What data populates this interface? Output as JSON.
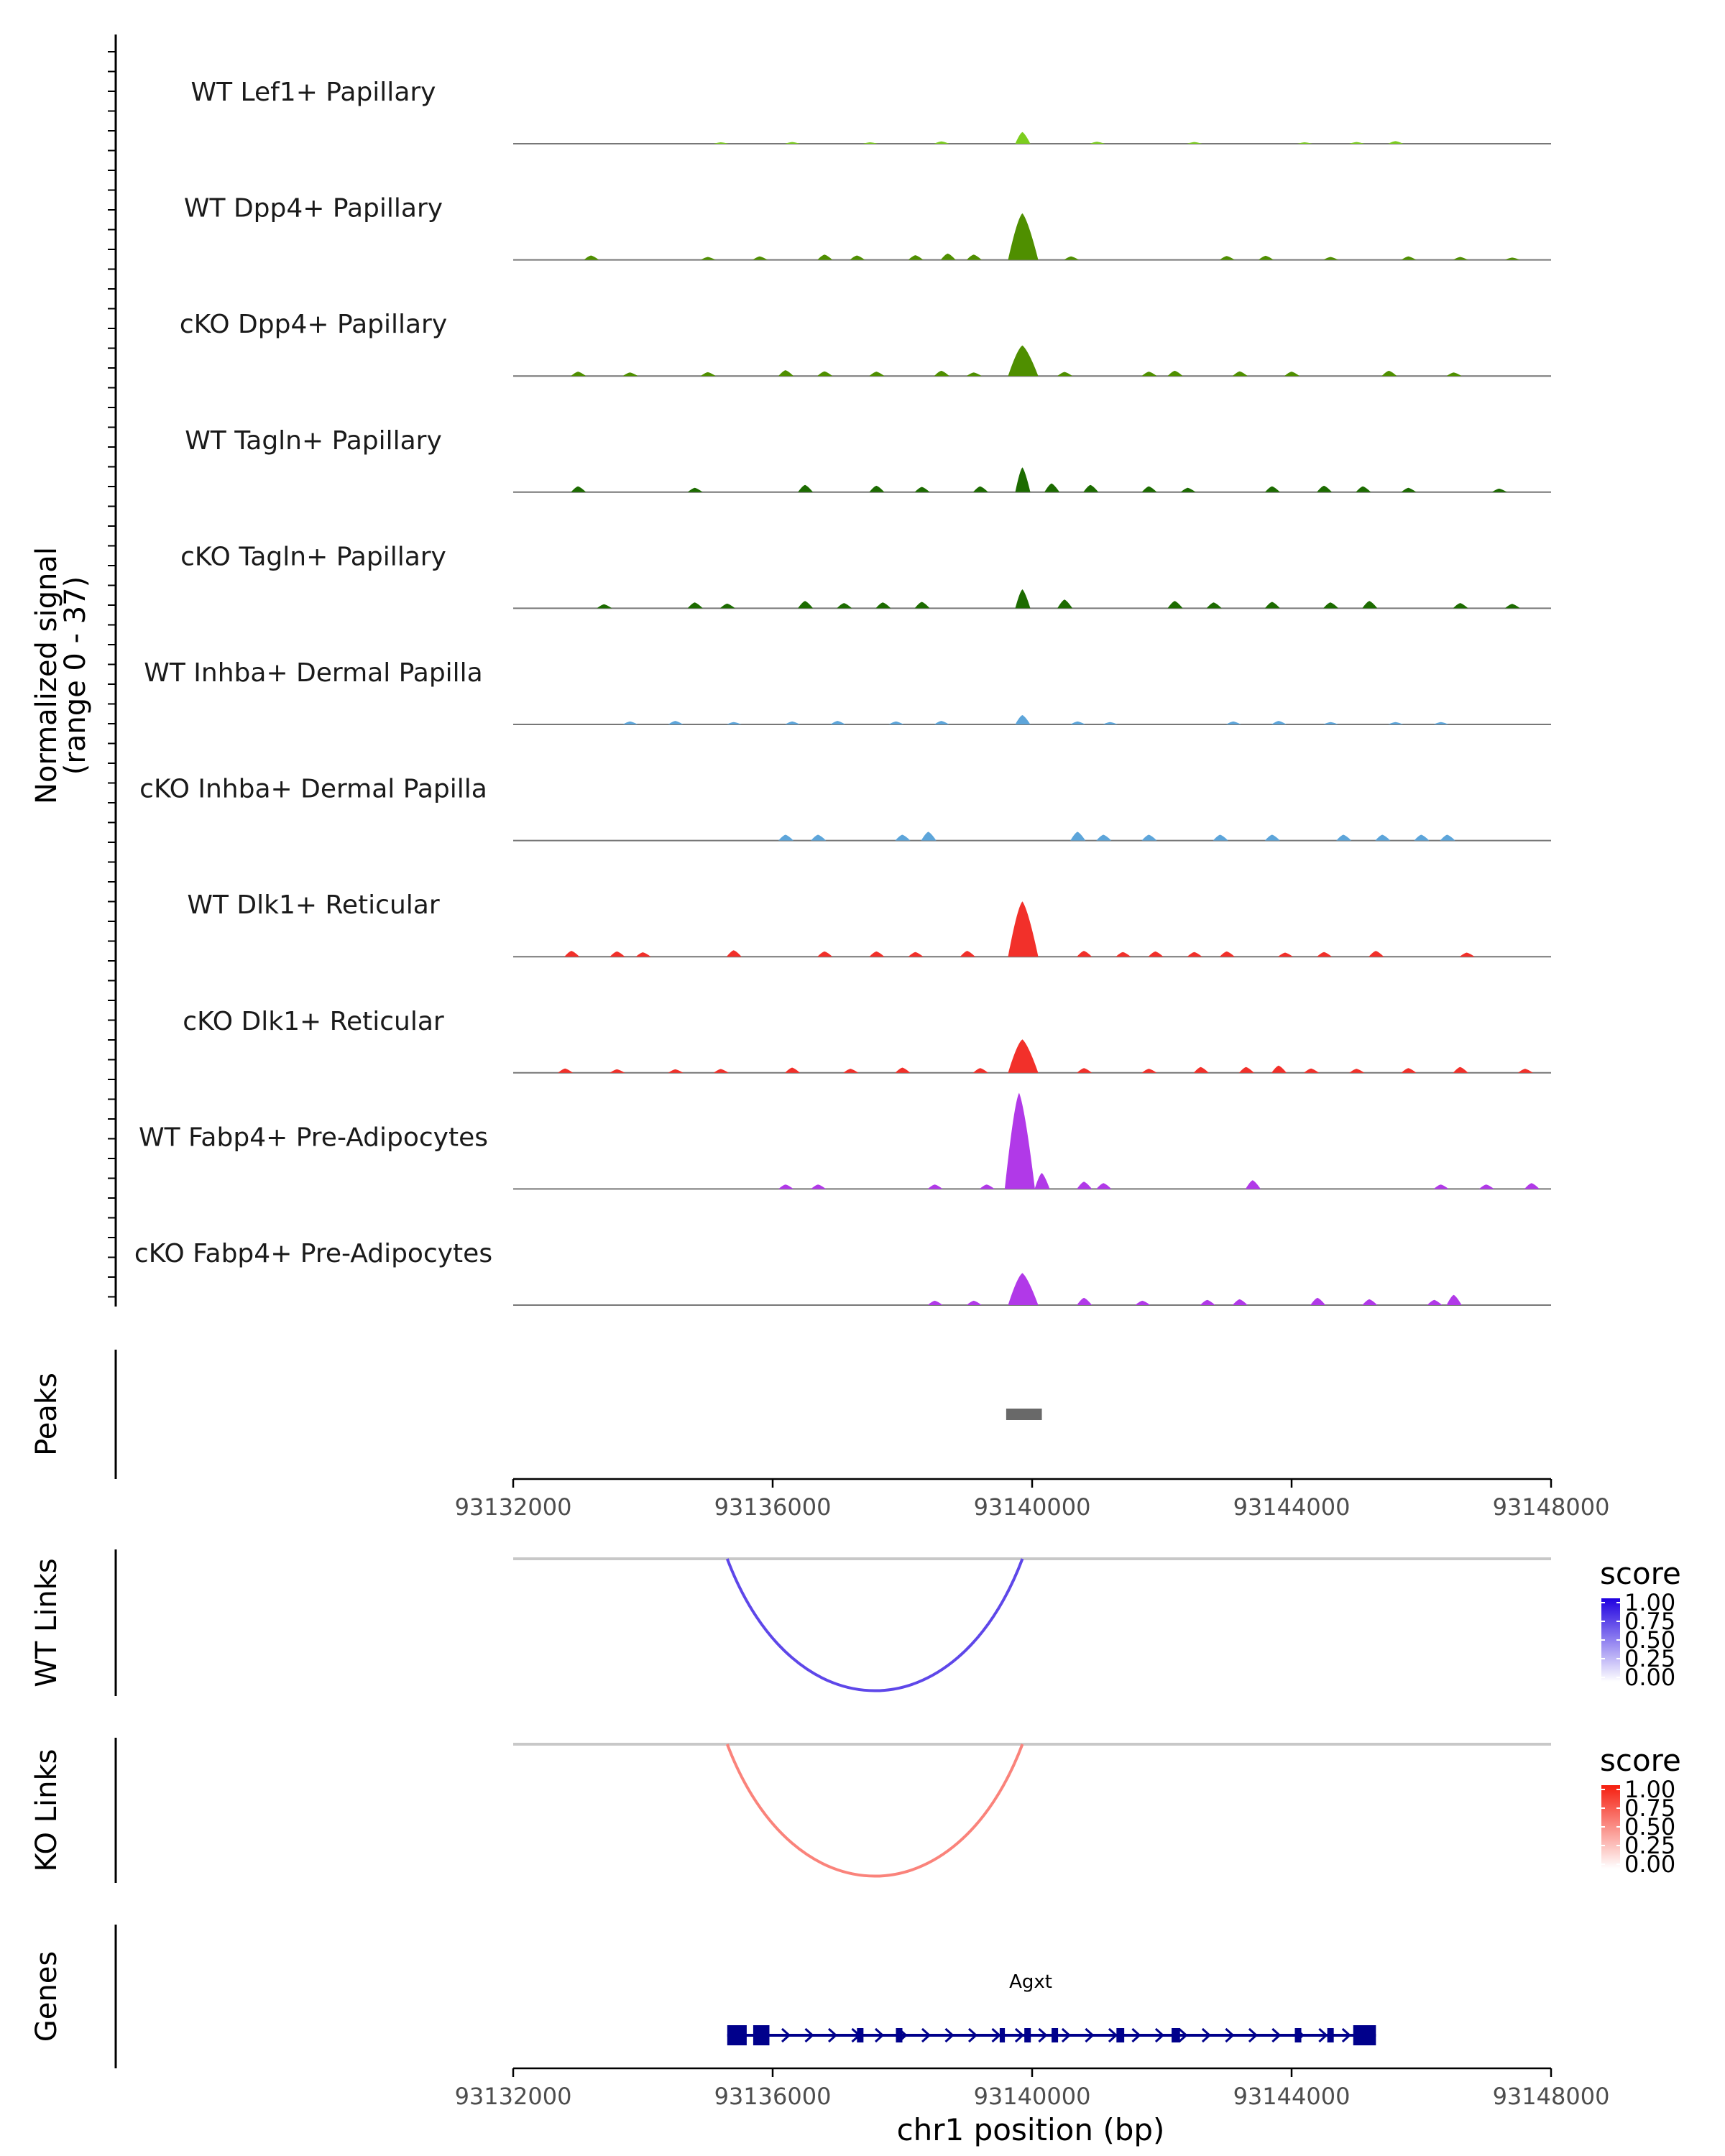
{
  "chart_data": [
    {
      "type": "area",
      "title": "",
      "ylabel": "Normalized signal\n(range 0 - 37)",
      "ylabel_line1": "Normalized signal",
      "ylabel_line2": "(range 0 - 37)",
      "ylim": [
        0,
        37
      ],
      "xlim": [
        93132000,
        93148000
      ],
      "series": [
        {
          "name": "WT Lef1+ Papillary",
          "color": "#7CCD1E",
          "peaks": [
            [
              93135200,
              0.5
            ],
            [
              93136300,
              0.6
            ],
            [
              93137500,
              0.5
            ],
            [
              93138600,
              0.8
            ],
            [
              93139850,
              4.0
            ],
            [
              93141000,
              0.7
            ],
            [
              93142500,
              0.6
            ],
            [
              93144200,
              0.5
            ],
            [
              93145000,
              0.6
            ],
            [
              93145600,
              0.9
            ]
          ]
        },
        {
          "name": "WT Dpp4+ Papillary",
          "color": "#4F8F00",
          "peaks": [
            [
              93133200,
              1.5
            ],
            [
              93135000,
              1.0
            ],
            [
              93135800,
              1.2
            ],
            [
              93136800,
              1.8
            ],
            [
              93137300,
              1.5
            ],
            [
              93138200,
              1.6
            ],
            [
              93138700,
              2.2
            ],
            [
              93139100,
              1.8
            ],
            [
              93139850,
              16.0
            ],
            [
              93140600,
              1.2
            ],
            [
              93143000,
              1.3
            ],
            [
              93143600,
              1.4
            ],
            [
              93144600,
              1.0
            ],
            [
              93145800,
              1.2
            ],
            [
              93146600,
              1.0
            ],
            [
              93147400,
              0.8
            ]
          ]
        },
        {
          "name": "cKO Dpp4+ Papillary",
          "color": "#4F8F00",
          "peaks": [
            [
              93133000,
              1.5
            ],
            [
              93133800,
              1.2
            ],
            [
              93135000,
              1.3
            ],
            [
              93136200,
              2.0
            ],
            [
              93136800,
              1.6
            ],
            [
              93137600,
              1.5
            ],
            [
              93138600,
              1.8
            ],
            [
              93139100,
              1.2
            ],
            [
              93139850,
              10.5
            ],
            [
              93140500,
              1.4
            ],
            [
              93141800,
              1.5
            ],
            [
              93142200,
              1.8
            ],
            [
              93143200,
              1.6
            ],
            [
              93144000,
              1.5
            ],
            [
              93145500,
              1.8
            ],
            [
              93146500,
              1.2
            ]
          ]
        },
        {
          "name": "WT Tagln+ Papillary",
          "color": "#1C6B00",
          "peaks": [
            [
              93133000,
              2.0
            ],
            [
              93134800,
              1.5
            ],
            [
              93136500,
              2.5
            ],
            [
              93137600,
              2.2
            ],
            [
              93138300,
              1.8
            ],
            [
              93139200,
              2.0
            ],
            [
              93139850,
              8.5
            ],
            [
              93140300,
              3.0
            ],
            [
              93140900,
              2.5
            ],
            [
              93141800,
              2.0
            ],
            [
              93142400,
              1.5
            ],
            [
              93143700,
              2.0
            ],
            [
              93144500,
              2.2
            ],
            [
              93145100,
              2.0
            ],
            [
              93145800,
              1.5
            ],
            [
              93147200,
              1.2
            ]
          ]
        },
        {
          "name": "cKO Tagln+ Papillary",
          "color": "#1C6B00",
          "peaks": [
            [
              93133400,
              1.4
            ],
            [
              93134800,
              2.0
            ],
            [
              93135300,
              1.6
            ],
            [
              93136500,
              2.5
            ],
            [
              93137100,
              1.8
            ],
            [
              93137700,
              2.0
            ],
            [
              93138300,
              2.2
            ],
            [
              93139850,
              6.5
            ],
            [
              93140500,
              3.0
            ],
            [
              93142200,
              2.5
            ],
            [
              93142800,
              2.0
            ],
            [
              93143700,
              2.2
            ],
            [
              93144600,
              2.0
            ],
            [
              93145200,
              2.5
            ],
            [
              93146600,
              1.8
            ],
            [
              93147400,
              1.5
            ]
          ]
        },
        {
          "name": "WT Inhba+ Dermal Papilla",
          "color": "#5DA5DA",
          "peaks": [
            [
              93133800,
              1.0
            ],
            [
              93134500,
              1.2
            ],
            [
              93135400,
              0.8
            ],
            [
              93136300,
              1.0
            ],
            [
              93137000,
              1.2
            ],
            [
              93137900,
              1.0
            ],
            [
              93138600,
              1.2
            ],
            [
              93139850,
              3.2
            ],
            [
              93140700,
              1.0
            ],
            [
              93141200,
              0.8
            ],
            [
              93143100,
              1.0
            ],
            [
              93143800,
              1.2
            ],
            [
              93144600,
              0.8
            ],
            [
              93145600,
              0.8
            ],
            [
              93146300,
              0.8
            ]
          ]
        },
        {
          "name": "cKO Inhba+ Dermal Papilla",
          "color": "#5DA5DA",
          "peaks": [
            [
              93136200,
              2.0
            ],
            [
              93136700,
              2.0
            ],
            [
              93138000,
              2.0
            ],
            [
              93138400,
              3.0
            ],
            [
              93140700,
              3.0
            ],
            [
              93141100,
              2.0
            ],
            [
              93141800,
              2.0
            ],
            [
              93142900,
              2.0
            ],
            [
              93143700,
              2.0
            ],
            [
              93144800,
              2.0
            ],
            [
              93145400,
              2.0
            ],
            [
              93146000,
              2.0
            ],
            [
              93146400,
              2.0
            ]
          ]
        },
        {
          "name": "WT Dlk1+ Reticular",
          "color": "#F2302A",
          "peaks": [
            [
              93132900,
              2.0
            ],
            [
              93133600,
              1.8
            ],
            [
              93134000,
              1.5
            ],
            [
              93135400,
              2.2
            ],
            [
              93136800,
              1.8
            ],
            [
              93137600,
              1.8
            ],
            [
              93138200,
              1.6
            ],
            [
              93139000,
              2.0
            ],
            [
              93139850,
              19.0
            ],
            [
              93140800,
              2.0
            ],
            [
              93141400,
              1.6
            ],
            [
              93141900,
              1.8
            ],
            [
              93142500,
              1.6
            ],
            [
              93143000,
              1.8
            ],
            [
              93143900,
              1.4
            ],
            [
              93144500,
              1.6
            ],
            [
              93145300,
              2.0
            ],
            [
              93146700,
              1.4
            ]
          ]
        },
        {
          "name": "cKO Dlk1+ Reticular",
          "color": "#F2302A",
          "peaks": [
            [
              93132800,
              1.5
            ],
            [
              93133600,
              1.2
            ],
            [
              93134500,
              1.2
            ],
            [
              93135200,
              1.3
            ],
            [
              93136300,
              1.8
            ],
            [
              93137200,
              1.4
            ],
            [
              93138000,
              1.8
            ],
            [
              93139200,
              1.6
            ],
            [
              93139850,
              11.5
            ],
            [
              93140800,
              1.6
            ],
            [
              93141800,
              1.4
            ],
            [
              93142600,
              2.0
            ],
            [
              93143300,
              2.0
            ],
            [
              93143800,
              2.5
            ],
            [
              93144300,
              1.5
            ],
            [
              93145000,
              1.4
            ],
            [
              93145800,
              1.6
            ],
            [
              93146600,
              2.0
            ],
            [
              93147600,
              1.4
            ]
          ]
        },
        {
          "name": "WT Fabp4+ Pre-Adipocytes",
          "color": "#B139E8",
          "peaks": [
            [
              93136200,
              1.5
            ],
            [
              93136700,
              1.5
            ],
            [
              93138500,
              1.5
            ],
            [
              93139300,
              1.5
            ],
            [
              93139800,
              33.0
            ],
            [
              93140150,
              5.5
            ],
            [
              93140800,
              2.5
            ],
            [
              93141100,
              2.0
            ],
            [
              93143400,
              3.0
            ],
            [
              93146300,
              1.5
            ],
            [
              93147000,
              1.5
            ],
            [
              93147700,
              2.0
            ]
          ]
        },
        {
          "name": "cKO Fabp4+ Pre-Adipocytes",
          "color": "#B139E8",
          "peaks": [
            [
              93138500,
              1.5
            ],
            [
              93139100,
              1.5
            ],
            [
              93139850,
              11.0
            ],
            [
              93140800,
              2.5
            ],
            [
              93141700,
              1.5
            ],
            [
              93142700,
              1.8
            ],
            [
              93143200,
              2.0
            ],
            [
              93144400,
              2.5
            ],
            [
              93145200,
              2.0
            ],
            [
              93146200,
              1.8
            ],
            [
              93146500,
              3.5
            ]
          ]
        }
      ]
    },
    {
      "type": "interval",
      "name": "Peaks",
      "ylabel": "Peaks",
      "intervals": [
        [
          93139600,
          93140150
        ]
      ],
      "color": "#696969"
    },
    {
      "type": "arc",
      "name": "WT Links",
      "ylabel": "WT Links",
      "links": [
        {
          "start": 93135300,
          "end": 93139850,
          "score": 0.72
        }
      ],
      "legend": {
        "title": "score",
        "ticks": [
          "1.00",
          "0.75",
          "0.50",
          "0.25",
          "0.00"
        ],
        "color_low": "#ffffff",
        "color_high": "#1F00E0"
      }
    },
    {
      "type": "arc",
      "name": "KO Links",
      "ylabel": "KO Links",
      "links": [
        {
          "start": 93135300,
          "end": 93139850,
          "score": 0.55
        }
      ],
      "legend": {
        "title": "score",
        "ticks": [
          "1.00",
          "0.75",
          "0.50",
          "0.25",
          "0.00"
        ],
        "color_low": "#ffffff",
        "color_high": "#F51E0F"
      }
    },
    {
      "type": "gene",
      "name": "Genes",
      "ylabel": "Genes",
      "gene_name": "Agxt",
      "strand": "+",
      "start": 93135300,
      "end": 93145300,
      "exons": [
        [
          93135300,
          93135600
        ],
        [
          93135700,
          93135950
        ],
        [
          93137300,
          93137400
        ],
        [
          93137900,
          93138000
        ],
        [
          93139500,
          93139580
        ],
        [
          93139880,
          93139980
        ],
        [
          93140300,
          93140400
        ],
        [
          93141300,
          93141420
        ],
        [
          93142150,
          93142280
        ],
        [
          93144050,
          93144150
        ],
        [
          93144550,
          93144650
        ],
        [
          93144950,
          93145300
        ]
      ],
      "color": "#00008B"
    }
  ],
  "axis": {
    "ticks": [
      93132000,
      93136000,
      93140000,
      93144000,
      93148000
    ],
    "tick_labels": [
      "93132000",
      "93136000",
      "93140000",
      "93144000",
      "93148000"
    ],
    "xlabel": "chr1 position (bp)"
  }
}
